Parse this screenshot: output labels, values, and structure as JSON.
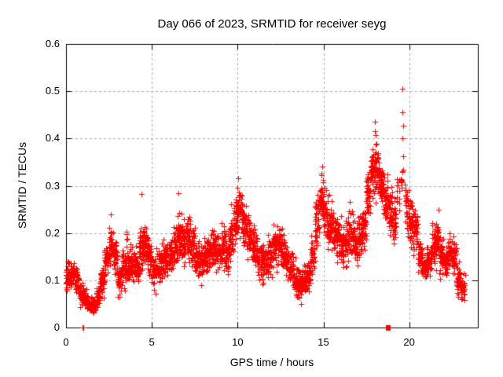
{
  "figure": {
    "title": "Day 066 of 2023, SRMTID for receiver seyg",
    "x_axis": {
      "label": "GPS time / hours",
      "min": 0,
      "max": 24,
      "tick_values": [
        0,
        5,
        10,
        15,
        20
      ],
      "tick_labels": [
        "0",
        "5",
        "10",
        "15",
        "20"
      ]
    },
    "y_axis": {
      "label": "SRMTID / TECUs",
      "min": 0,
      "max": 0.6,
      "tick_values": [
        0,
        0.1,
        0.2,
        0.3,
        0.4,
        0.5,
        0.6
      ],
      "tick_labels": [
        "0",
        "0.1",
        "0.2",
        "0.3",
        "0.4",
        "0.5",
        "0.6"
      ]
    }
  },
  "colors": {
    "marker": "#ff0000",
    "grid": "#aaaaaa",
    "border": "#000000",
    "text": "#000000",
    "background": "#ffffff"
  },
  "chart_data": {
    "type": "scatter",
    "title": "Day 066 of 2023, SRMTID for receiver seyg",
    "xlabel": "GPS time / hours",
    "ylabel": "SRMTID / TECUs",
    "xlim": [
      0,
      24
    ],
    "ylim": [
      0,
      0.6
    ],
    "xticks": [
      0,
      5,
      10,
      15,
      20
    ],
    "yticks": [
      0,
      0.1,
      0.2,
      0.3,
      0.4,
      0.5,
      0.6
    ],
    "grid": "dashed-gray-at-major-ticks",
    "legend": "none",
    "marker": "plus",
    "marker_color": "#ff0000",
    "series_name": "SRMTID",
    "bins_format": [
      "hour_center",
      "mean_TECUs",
      "half_spread_TECUs",
      "point_count"
    ],
    "bins": [
      [
        0.125,
        0.105,
        0.035,
        42
      ],
      [
        0.375,
        0.115,
        0.03,
        40
      ],
      [
        0.625,
        0.1,
        0.035,
        40
      ],
      [
        0.875,
        0.075,
        0.035,
        38
      ],
      [
        1.125,
        0.06,
        0.025,
        36
      ],
      [
        1.375,
        0.05,
        0.022,
        36
      ],
      [
        1.625,
        0.045,
        0.02,
        36
      ],
      [
        1.875,
        0.07,
        0.028,
        38
      ],
      [
        2.125,
        0.1,
        0.035,
        40
      ],
      [
        2.375,
        0.15,
        0.045,
        42
      ],
      [
        2.625,
        0.175,
        0.045,
        42
      ],
      [
        2.875,
        0.15,
        0.04,
        40
      ],
      [
        3.125,
        0.105,
        0.045,
        40
      ],
      [
        3.375,
        0.125,
        0.055,
        40
      ],
      [
        3.625,
        0.145,
        0.055,
        42
      ],
      [
        3.875,
        0.13,
        0.04,
        40
      ],
      [
        4.125,
        0.13,
        0.04,
        40
      ],
      [
        4.375,
        0.165,
        0.06,
        42
      ],
      [
        4.625,
        0.175,
        0.055,
        42
      ],
      [
        4.875,
        0.15,
        0.045,
        40
      ],
      [
        5.125,
        0.12,
        0.05,
        40
      ],
      [
        5.375,
        0.13,
        0.04,
        40
      ],
      [
        5.625,
        0.14,
        0.04,
        40
      ],
      [
        5.875,
        0.15,
        0.045,
        40
      ],
      [
        6.125,
        0.155,
        0.05,
        42
      ],
      [
        6.375,
        0.17,
        0.06,
        42
      ],
      [
        6.625,
        0.19,
        0.06,
        44
      ],
      [
        6.875,
        0.18,
        0.06,
        42
      ],
      [
        7.125,
        0.19,
        0.06,
        42
      ],
      [
        7.375,
        0.17,
        0.05,
        40
      ],
      [
        7.625,
        0.15,
        0.045,
        40
      ],
      [
        7.875,
        0.14,
        0.04,
        40
      ],
      [
        8.125,
        0.15,
        0.04,
        40
      ],
      [
        8.375,
        0.16,
        0.045,
        40
      ],
      [
        8.625,
        0.17,
        0.05,
        42
      ],
      [
        8.875,
        0.16,
        0.05,
        40
      ],
      [
        9.125,
        0.17,
        0.05,
        40
      ],
      [
        9.375,
        0.16,
        0.05,
        40
      ],
      [
        9.625,
        0.19,
        0.06,
        42
      ],
      [
        9.875,
        0.24,
        0.065,
        44
      ],
      [
        10.125,
        0.25,
        0.06,
        44
      ],
      [
        10.375,
        0.22,
        0.06,
        42
      ],
      [
        10.625,
        0.2,
        0.06,
        42
      ],
      [
        10.875,
        0.18,
        0.055,
        40
      ],
      [
        11.125,
        0.15,
        0.05,
        40
      ],
      [
        11.375,
        0.13,
        0.05,
        40
      ],
      [
        11.625,
        0.14,
        0.045,
        40
      ],
      [
        11.875,
        0.15,
        0.05,
        40
      ],
      [
        12.125,
        0.17,
        0.055,
        42
      ],
      [
        12.375,
        0.17,
        0.05,
        40
      ],
      [
        12.625,
        0.16,
        0.05,
        40
      ],
      [
        12.875,
        0.14,
        0.04,
        40
      ],
      [
        13.125,
        0.12,
        0.04,
        38
      ],
      [
        13.375,
        0.1,
        0.04,
        38
      ],
      [
        13.625,
        0.09,
        0.038,
        38
      ],
      [
        13.875,
        0.1,
        0.04,
        38
      ],
      [
        14.125,
        0.11,
        0.04,
        38
      ],
      [
        14.375,
        0.15,
        0.055,
        40
      ],
      [
        14.625,
        0.22,
        0.07,
        42
      ],
      [
        14.875,
        0.27,
        0.06,
        44
      ],
      [
        15.125,
        0.24,
        0.06,
        42
      ],
      [
        15.375,
        0.22,
        0.065,
        42
      ],
      [
        15.625,
        0.2,
        0.06,
        42
      ],
      [
        15.875,
        0.19,
        0.06,
        40
      ],
      [
        16.125,
        0.17,
        0.06,
        40
      ],
      [
        16.375,
        0.19,
        0.06,
        40
      ],
      [
        16.625,
        0.2,
        0.06,
        40
      ],
      [
        16.875,
        0.18,
        0.06,
        40
      ],
      [
        17.125,
        0.19,
        0.06,
        40
      ],
      [
        17.375,
        0.21,
        0.06,
        40
      ],
      [
        17.625,
        0.28,
        0.07,
        42
      ],
      [
        17.875,
        0.33,
        0.065,
        44
      ],
      [
        18.125,
        0.335,
        0.07,
        44
      ],
      [
        18.375,
        0.3,
        0.06,
        42
      ],
      [
        18.625,
        0.27,
        0.06,
        42
      ],
      [
        18.875,
        0.24,
        0.065,
        40
      ],
      [
        19.125,
        0.22,
        0.06,
        36
      ],
      [
        19.375,
        0.28,
        0.045,
        14
      ],
      [
        19.625,
        0.31,
        0.04,
        10
      ],
      [
        19.875,
        0.25,
        0.06,
        36
      ],
      [
        20.125,
        0.22,
        0.065,
        40
      ],
      [
        20.375,
        0.2,
        0.06,
        40
      ],
      [
        20.625,
        0.15,
        0.04,
        38
      ],
      [
        20.875,
        0.13,
        0.03,
        38
      ],
      [
        21.125,
        0.14,
        0.04,
        40
      ],
      [
        21.375,
        0.17,
        0.05,
        40
      ],
      [
        21.625,
        0.18,
        0.05,
        40
      ],
      [
        21.875,
        0.15,
        0.05,
        40
      ],
      [
        22.125,
        0.14,
        0.04,
        40
      ],
      [
        22.375,
        0.16,
        0.04,
        40
      ],
      [
        22.625,
        0.15,
        0.05,
        40
      ],
      [
        22.875,
        0.1,
        0.04,
        38
      ],
      [
        23.125,
        0.08,
        0.038,
        30
      ]
    ],
    "outliers": [
      [
        19.62,
        0.505
      ],
      [
        19.6,
        0.455
      ],
      [
        19.64,
        0.427
      ],
      [
        19.61,
        0.4
      ],
      [
        19.63,
        0.362
      ],
      [
        19.6,
        0.33
      ],
      [
        18.02,
        0.435
      ],
      [
        17.98,
        0.415
      ],
      [
        18.06,
        0.408
      ],
      [
        4.4,
        0.283
      ],
      [
        10.05,
        0.315
      ],
      [
        14.92,
        0.34
      ],
      [
        6.55,
        0.285
      ],
      [
        2.6,
        0.24
      ]
    ],
    "zero_markers": [
      {
        "x": 0.95,
        "y": 0,
        "style": "plus"
      },
      {
        "x": 1.02,
        "y": 0,
        "style": "plus"
      },
      {
        "x": 18.8,
        "y": 0,
        "style": "square"
      }
    ]
  }
}
